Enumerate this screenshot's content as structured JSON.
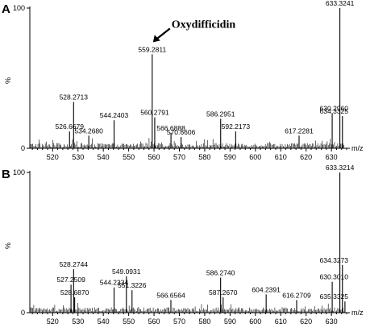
{
  "chart_data": [
    {
      "type": "mass-spectrum",
      "panel_label": "A",
      "xlabel": "m/z",
      "ylabel": "%",
      "xlim": [
        511,
        636
      ],
      "ylim": [
        0,
        100
      ],
      "x_ticks": [
        520,
        530,
        540,
        550,
        560,
        570,
        580,
        590,
        600,
        610,
        620,
        630
      ],
      "y_ticks": [
        0,
        100
      ],
      "annotation": {
        "text": "Oxydifficidin",
        "points_to": 559.2811
      },
      "peaks": [
        {
          "mz": 526.6679,
          "intensity": 12,
          "label": "526.6679"
        },
        {
          "mz": 528.2713,
          "intensity": 33,
          "label": "528.2713"
        },
        {
          "mz": 534.268,
          "intensity": 9,
          "label": "534.2680"
        },
        {
          "mz": 544.2403,
          "intensity": 20,
          "label": "544.2403"
        },
        {
          "mz": 559.2811,
          "intensity": 67,
          "label": "559.2811"
        },
        {
          "mz": 560.2791,
          "intensity": 22,
          "label": "560.2791"
        },
        {
          "mz": 566.6888,
          "intensity": 11,
          "label": "566.6888"
        },
        {
          "mz": 570.6606,
          "intensity": 8,
          "label": "570.6606"
        },
        {
          "mz": 586.2951,
          "intensity": 21,
          "label": "586.2951"
        },
        {
          "mz": 592.2173,
          "intensity": 12,
          "label": "592.2173"
        },
        {
          "mz": 617.2281,
          "intensity": 9,
          "label": "617.2281"
        },
        {
          "mz": 630.296,
          "intensity": 25,
          "label": "630.2960"
        },
        {
          "mz": 633.3241,
          "intensity": 100,
          "label": "633.3241"
        },
        {
          "mz": 634.3325,
          "intensity": 23,
          "label": "634.3325"
        }
      ]
    },
    {
      "type": "mass-spectrum",
      "panel_label": "B",
      "xlabel": "m/z",
      "ylabel": "%",
      "xlim": [
        511,
        636
      ],
      "ylim": [
        0,
        100
      ],
      "x_ticks": [
        520,
        530,
        540,
        550,
        560,
        570,
        580,
        590,
        600,
        610,
        620,
        630
      ],
      "y_ticks": [
        0,
        100
      ],
      "peaks": [
        {
          "mz": 527.2509,
          "intensity": 20,
          "label": "527.2509"
        },
        {
          "mz": 528.2744,
          "intensity": 31,
          "label": "528.2744"
        },
        {
          "mz": 528.687,
          "intensity": 11,
          "label": "528.6870"
        },
        {
          "mz": 544.2334,
          "intensity": 18,
          "label": "544.2334"
        },
        {
          "mz": 549.0931,
          "intensity": 26,
          "label": "549.0931"
        },
        {
          "mz": 551.3226,
          "intensity": 16,
          "label": "551.3226"
        },
        {
          "mz": 566.6564,
          "intensity": 9,
          "label": "566.6564"
        },
        {
          "mz": 586.274,
          "intensity": 25,
          "label": "586.2740"
        },
        {
          "mz": 587.267,
          "intensity": 11,
          "label": "587.2670"
        },
        {
          "mz": 604.2391,
          "intensity": 13,
          "label": "604.2391"
        },
        {
          "mz": 616.2709,
          "intensity": 9,
          "label": "616.2709"
        },
        {
          "mz": 630.301,
          "intensity": 22,
          "label": "630.3010"
        },
        {
          "mz": 633.3214,
          "intensity": 100,
          "label": "633.3214"
        },
        {
          "mz": 634.3273,
          "intensity": 34,
          "label": "634.3273"
        },
        {
          "mz": 635.3325,
          "intensity": 8,
          "label": "635.3325"
        }
      ]
    }
  ]
}
